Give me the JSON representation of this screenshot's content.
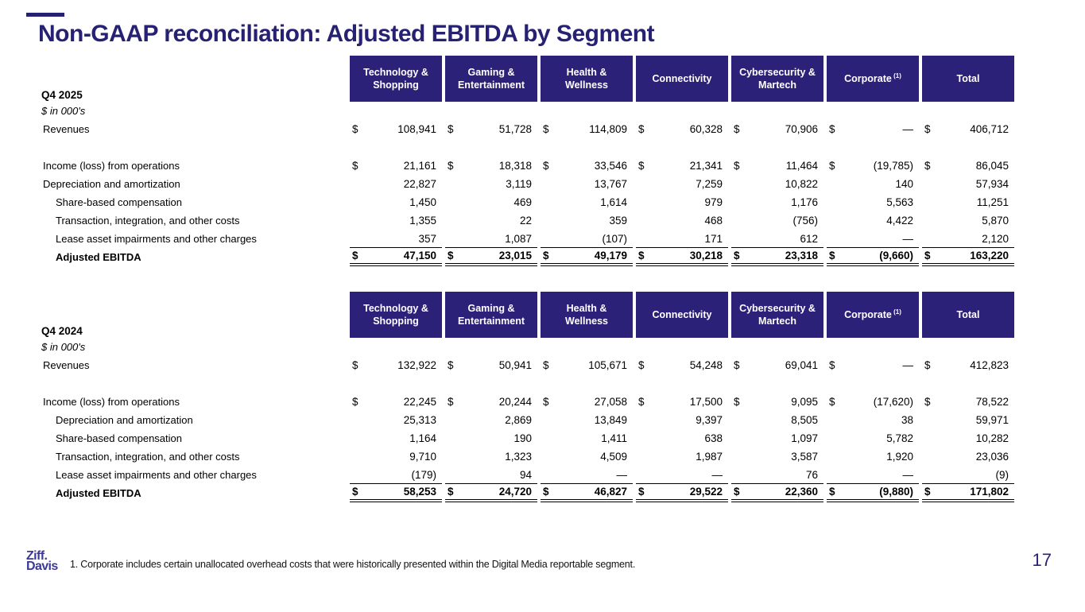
{
  "slide": {
    "title": "Non-GAAP reconciliation: Adjusted EBITDA by Segment",
    "page_number": "17",
    "footnote": "1. Corporate includes certain unallocated overhead costs that were historically presented within the Digital Media reportable segment.",
    "logo": {
      "line1": "Ziff.",
      "line2": "Davis"
    }
  },
  "colors": {
    "header_bg": "#2B2178",
    "title": "#262173",
    "logo": "#3C3A94",
    "page": "#2B2178"
  },
  "columns": [
    {
      "label": "Technology & Shopping",
      "sup": ""
    },
    {
      "label": "Gaming & Entertainment",
      "sup": ""
    },
    {
      "label": "Health & Wellness",
      "sup": ""
    },
    {
      "label": "Connectivity",
      "sup": ""
    },
    {
      "label": "Cybersecurity & Martech",
      "sup": ""
    },
    {
      "label": "Corporate",
      "sup": "(1)"
    },
    {
      "label": "Total",
      "sup": ""
    }
  ],
  "tables": [
    {
      "period": "Q4 2025",
      "units": "$ in 000's",
      "rows": [
        {
          "label": "Revenues",
          "indent": 0,
          "dollar": true,
          "values": [
            "108,941",
            "51,728",
            "114,809",
            "60,328",
            "70,906",
            "—",
            "406,712"
          ]
        },
        {
          "spacer": true
        },
        {
          "label": "Income (loss) from operations",
          "indent": 0,
          "dollar": true,
          "values": [
            "21,161",
            "18,318",
            "33,546",
            "21,341",
            "11,464",
            "(19,785)",
            "86,045"
          ]
        },
        {
          "label": "Depreciation and amortization",
          "indent": 0,
          "values": [
            "22,827",
            "3,119",
            "13,767",
            "7,259",
            "10,822",
            "140",
            "57,934"
          ]
        },
        {
          "label": "Share-based compensation",
          "indent": 1,
          "values": [
            "1,450",
            "469",
            "1,614",
            "979",
            "1,176",
            "5,563",
            "11,251"
          ]
        },
        {
          "label": "Transaction, integration, and other costs",
          "indent": 1,
          "values": [
            "1,355",
            "22",
            "359",
            "468",
            "(756)",
            "4,422",
            "5,870"
          ]
        },
        {
          "label": "Lease asset impairments and other charges",
          "indent": 1,
          "underline": true,
          "values": [
            "357",
            "1,087",
            "(107)",
            "171",
            "612",
            "—",
            "2,120"
          ]
        },
        {
          "label": "Adjusted EBITDA",
          "indent": 1,
          "bold": true,
          "dollar": true,
          "double_underline": true,
          "values": [
            "47,150",
            "23,015",
            "49,179",
            "30,218",
            "23,318",
            "(9,660)",
            "163,220"
          ]
        }
      ]
    },
    {
      "period": "Q4 2024",
      "units": "$ in 000's",
      "rows": [
        {
          "label": "Revenues",
          "indent": 0,
          "dollar": true,
          "values": [
            "132,922",
            "50,941",
            "105,671",
            "54,248",
            "69,041",
            "—",
            "412,823"
          ]
        },
        {
          "spacer": true
        },
        {
          "label": "Income (loss) from operations",
          "indent": 0,
          "dollar": true,
          "values": [
            "22,245",
            "20,244",
            "27,058",
            "17,500",
            "9,095",
            "(17,620)",
            "78,522"
          ]
        },
        {
          "label": "Depreciation and amortization",
          "indent": 1,
          "values": [
            "25,313",
            "2,869",
            "13,849",
            "9,397",
            "8,505",
            "38",
            "59,971"
          ]
        },
        {
          "label": "Share-based compensation",
          "indent": 1,
          "values": [
            "1,164",
            "190",
            "1,411",
            "638",
            "1,097",
            "5,782",
            "10,282"
          ]
        },
        {
          "label": "Transaction, integration, and other costs",
          "indent": 1,
          "values": [
            "9,710",
            "1,323",
            "4,509",
            "1,987",
            "3,587",
            "1,920",
            "23,036"
          ]
        },
        {
          "label": "Lease asset impairments and other charges",
          "indent": 1,
          "underline": true,
          "values": [
            "(179)",
            "94",
            "—",
            "—",
            "76",
            "—",
            "(9)"
          ]
        },
        {
          "label": "Adjusted EBITDA",
          "indent": 1,
          "bold": true,
          "dollar": true,
          "double_underline": true,
          "values": [
            "58,253",
            "24,720",
            "46,827",
            "29,522",
            "22,360",
            "(9,880)",
            "171,802"
          ]
        }
      ]
    }
  ]
}
